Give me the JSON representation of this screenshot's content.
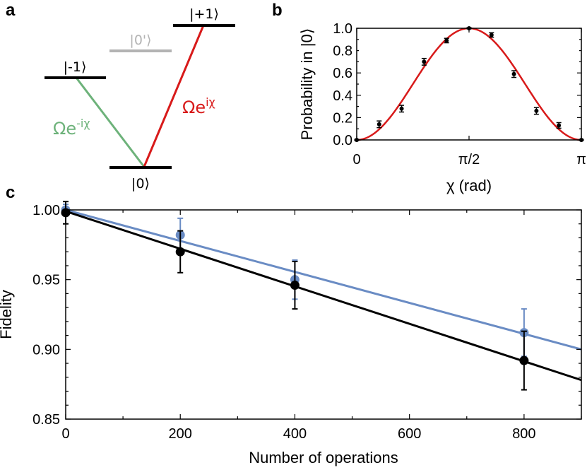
{
  "panels": {
    "a": "a",
    "b": "b",
    "c": "c"
  },
  "level_diagram": {
    "levels": [
      {
        "label": "|-1⟩",
        "color": "#000000"
      },
      {
        "label": "|0'⟩",
        "color": "#b3b3b3"
      },
      {
        "label": "|+1⟩",
        "color": "#000000"
      },
      {
        "label": "|0⟩",
        "color": "#000000"
      }
    ],
    "transitions": [
      {
        "label_base": "Ωe",
        "label_exp": "-iχ",
        "color": "#6db27a"
      },
      {
        "label_base": "Ωe",
        "label_exp": "iχ",
        "color": "#d81a1a"
      }
    ]
  },
  "chart_data": [
    {
      "panel": "b",
      "type": "scatter",
      "title": "",
      "xlabel": "χ (rad)",
      "ylabel": "Probability in |0⟩",
      "xlim": [
        0,
        3.14159
      ],
      "ylim": [
        0,
        1.0
      ],
      "xticks": [
        {
          "value": 0,
          "label": "0"
        },
        {
          "value": 1.5708,
          "label": "π/2"
        },
        {
          "value": 3.14159,
          "label": "π"
        }
      ],
      "yticks": [
        {
          "value": 0.0,
          "label": "0.0"
        },
        {
          "value": 0.2,
          "label": "0.2"
        },
        {
          "value": 0.4,
          "label": "0.4"
        },
        {
          "value": 0.6,
          "label": "0.6"
        },
        {
          "value": 0.8,
          "label": "0.8"
        },
        {
          "value": 1.0,
          "label": "1.0"
        }
      ],
      "series": [
        {
          "kind": "points",
          "color": "#000000",
          "x": [
            0,
            0.314,
            0.628,
            0.942,
            1.257,
            1.571,
            1.885,
            2.199,
            2.513,
            2.827,
            3.142
          ],
          "y": [
            0.0,
            0.14,
            0.28,
            0.7,
            0.89,
            1.0,
            0.94,
            0.59,
            0.26,
            0.13,
            0.0
          ],
          "err": [
            0.005,
            0.03,
            0.03,
            0.03,
            0.02,
            0.005,
            0.02,
            0.03,
            0.03,
            0.025,
            0.005
          ]
        },
        {
          "kind": "curve",
          "color": "#d81a1a",
          "model": "sin^2(x)"
        }
      ],
      "grid": false
    },
    {
      "panel": "c",
      "type": "scatter",
      "title": "",
      "xlabel": "Number of operations",
      "ylabel": "Fidelity",
      "xlim": [
        0,
        900
      ],
      "ylim": [
        0.85,
        1.0
      ],
      "xticks": [
        {
          "value": 0,
          "label": "0"
        },
        {
          "value": 200,
          "label": "200"
        },
        {
          "value": 400,
          "label": "400"
        },
        {
          "value": 600,
          "label": "600"
        },
        {
          "value": 800,
          "label": "800"
        }
      ],
      "yticks": [
        {
          "value": 0.85,
          "label": "0.85"
        },
        {
          "value": 0.9,
          "label": "0.90"
        },
        {
          "value": 0.95,
          "label": "0.95"
        },
        {
          "value": 1.0,
          "label": "1.00"
        }
      ],
      "series": [
        {
          "color": "#6a8cc4",
          "x": [
            0,
            200,
            400,
            800
          ],
          "y": [
            1.0,
            0.982,
            0.95,
            0.912
          ],
          "err": [
            0.004,
            0.012,
            0.014,
            0.017
          ],
          "fit": {
            "x": [
              0,
              900
            ],
            "y": [
              1.0,
              0.9
            ]
          }
        },
        {
          "color": "#000000",
          "x": [
            0,
            200,
            400,
            800
          ],
          "y": [
            0.998,
            0.97,
            0.946,
            0.892
          ],
          "err": [
            0.008,
            0.015,
            0.017,
            0.021
          ],
          "fit": {
            "x": [
              0,
              900
            ],
            "y": [
              0.999,
              0.878
            ]
          }
        }
      ],
      "grid": false
    }
  ]
}
